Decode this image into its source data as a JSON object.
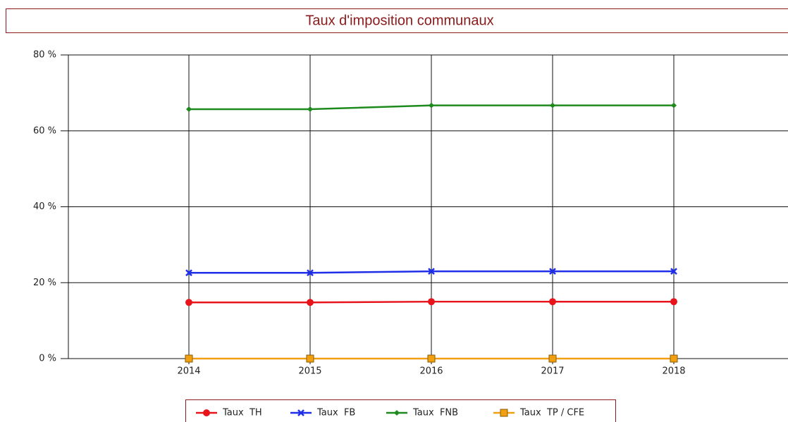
{
  "chart_data": {
    "type": "line",
    "title": "Taux d'imposition communaux",
    "categories": [
      "2014",
      "2015",
      "2016",
      "2017",
      "2018"
    ],
    "series": [
      {
        "name": "Taux  TH",
        "color": "#e8141c",
        "marker": "circle",
        "values": [
          14.8,
          14.8,
          15.0,
          15.0,
          15.0
        ]
      },
      {
        "name": "Taux  FB",
        "color": "#1f2ee8",
        "marker": "x",
        "values": [
          22.6,
          22.6,
          23.0,
          23.0,
          23.0
        ]
      },
      {
        "name": "Taux  FNB",
        "color": "#1e8a1e",
        "marker": "diamond",
        "values": [
          65.7,
          65.7,
          66.7,
          66.7,
          66.7
        ]
      },
      {
        "name": "Taux  TP / CFE",
        "color": "#f0a010",
        "marker": "square",
        "values": [
          0,
          0,
          0,
          0,
          0
        ]
      }
    ],
    "ylim": [
      0,
      80
    ],
    "yticks": [
      {
        "value": 0,
        "label": "0 %"
      },
      {
        "value": 20,
        "label": "20 %"
      },
      {
        "value": 40,
        "label": "40 %"
      },
      {
        "value": 60,
        "label": "60 %"
      },
      {
        "value": 80,
        "label": "80 %"
      }
    ],
    "grid": true,
    "legend": "bottom"
  }
}
